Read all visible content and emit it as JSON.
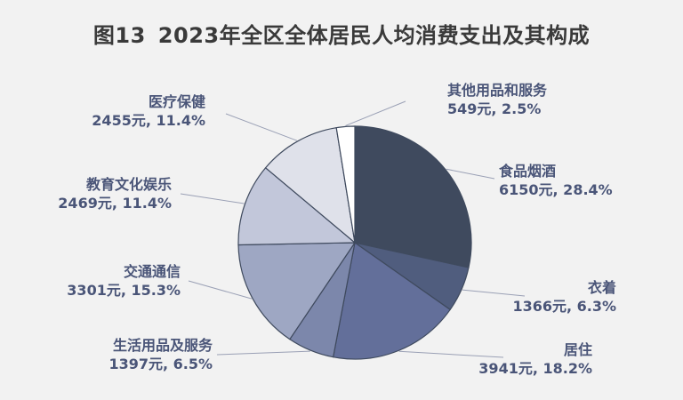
{
  "chart_data": {
    "type": "pie",
    "title_number": "图13",
    "title": "2023年全区全体居民人均消费支出及其构成",
    "slices": [
      {
        "name": "食品烟酒",
        "value": 6150,
        "value_text": "6150元, 28.4%",
        "percent": 28.4,
        "color": "#3f4a5e"
      },
      {
        "name": "衣着",
        "value": 1366,
        "value_text": "1366元, 6.3%",
        "percent": 6.3,
        "color": "#505d7e"
      },
      {
        "name": "居住",
        "value": 3941,
        "value_text": "3941元, 18.2%",
        "percent": 18.2,
        "color": "#636f9a"
      },
      {
        "name": "生活用品及服务",
        "value": 1397,
        "value_text": "1397元, 6.5%",
        "percent": 6.5,
        "color": "#7c87ab"
      },
      {
        "name": "交通通信",
        "value": 3301,
        "value_text": "3301元, 15.3%",
        "percent": 15.3,
        "color": "#9ea7c3"
      },
      {
        "name": "教育文化娱乐",
        "value": 2469,
        "value_text": "2469元, 11.4%",
        "percent": 11.4,
        "color": "#c2c7da"
      },
      {
        "name": "医疗保健",
        "value": 2455,
        "value_text": "2455元, 11.4%",
        "percent": 11.4,
        "color": "#dfe1ea"
      },
      {
        "name": "其他用品和服务",
        "value": 549,
        "value_text": "549元, 2.5%",
        "percent": 2.5,
        "color": "#ffffff"
      }
    ],
    "start_angle_deg": 0,
    "direction": "clockwise",
    "colors": {
      "background": "#f2f2f2",
      "slice_border": "#3f4a5e",
      "label_text": "#4a5578",
      "leader_line": "#9aa0b5",
      "title_text": "#3a3a3a"
    }
  }
}
